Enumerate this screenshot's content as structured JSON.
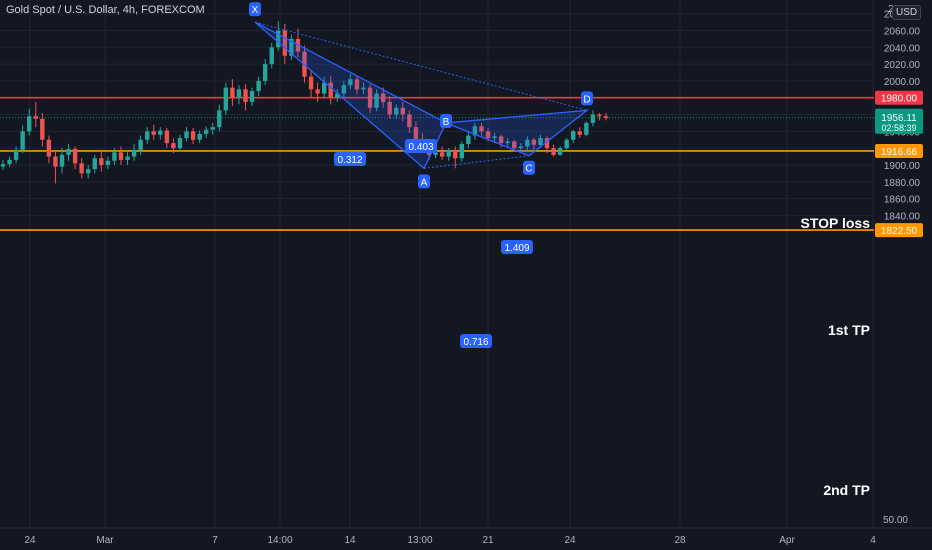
{
  "header": {
    "title": "Gold Spot / U.S. Dollar, 4h, FOREXCOM",
    "currency": "USD"
  },
  "colors": {
    "background": "#131722",
    "grid": "#1f2430",
    "bull": "#26a69a",
    "bear": "#ef5350",
    "pattern": "#2962ff",
    "stop": "#f23645",
    "target": "#ff9800",
    "last_price": "#089981",
    "axis_text": "#b2b5be"
  },
  "chart_data": {
    "type": "candlestick",
    "y_axis": {
      "ylim": [
        1810,
        2096
      ],
      "ticks": [
        1840,
        1860,
        1880,
        1900,
        1920,
        1940,
        1960,
        1980,
        2000,
        2020,
        2040,
        2060,
        2080
      ],
      "tick_labels": [
        "1840.00",
        "1860.00",
        "1880.00",
        "1900.00",
        "1920.00",
        "1940.00",
        "1960.00",
        "1980.00",
        "2000.00",
        "2020.00",
        "2040.00",
        "2060.00",
        "2080.00"
      ],
      "top_partial_label": "21",
      "bottom_label": "50.00"
    },
    "x_axis": {
      "labels": [
        "24",
        "Mar",
        "7",
        "14:00",
        "14",
        "13:00",
        "21",
        "24",
        "28",
        "Apr",
        "4"
      ]
    },
    "levels": [
      {
        "name": "STOP loss",
        "price": 1980.0,
        "label": "1980.00",
        "color": "#f23645"
      },
      {
        "name": "1st TP",
        "price": 1916.66,
        "label": "1916.66",
        "color": "#ff9800"
      },
      {
        "name": "2nd TP",
        "price": 1822.5,
        "label": "1822.50",
        "color": "#ff9800"
      }
    ],
    "last_price": {
      "price": 1956.11,
      "label": "1956.11",
      "countdown": "02:58:39"
    },
    "pattern": {
      "points": [
        {
          "name": "X",
          "price": 2070
        },
        {
          "name": "A",
          "price": 1896
        },
        {
          "name": "B",
          "price": 1950
        },
        {
          "name": "C",
          "price": 1911
        },
        {
          "name": "D",
          "price": 1965
        }
      ],
      "ratios": [
        {
          "label": "0.312"
        },
        {
          "label": "0.403"
        },
        {
          "label": "1.409"
        },
        {
          "label": "0.716"
        }
      ]
    },
    "candles": [
      {
        "o": 1898,
        "h": 1906,
        "c": 1901,
        "l": 1894
      },
      {
        "o": 1901,
        "h": 1910,
        "c": 1906,
        "l": 1898
      },
      {
        "o": 1906,
        "h": 1922,
        "c": 1918,
        "l": 1902
      },
      {
        "o": 1918,
        "h": 1947,
        "c": 1940,
        "l": 1914
      },
      {
        "o": 1940,
        "h": 1967,
        "c": 1958,
        "l": 1935
      },
      {
        "o": 1958,
        "h": 1975,
        "c": 1955,
        "l": 1945
      },
      {
        "o": 1955,
        "h": 1962,
        "c": 1930,
        "l": 1922
      },
      {
        "o": 1930,
        "h": 1935,
        "c": 1910,
        "l": 1902
      },
      {
        "o": 1910,
        "h": 1918,
        "c": 1898,
        "l": 1878
      },
      {
        "o": 1898,
        "h": 1920,
        "c": 1912,
        "l": 1890
      },
      {
        "o": 1912,
        "h": 1925,
        "c": 1919,
        "l": 1905
      },
      {
        "o": 1919,
        "h": 1922,
        "c": 1902,
        "l": 1895
      },
      {
        "o": 1902,
        "h": 1908,
        "c": 1890,
        "l": 1884
      },
      {
        "o": 1890,
        "h": 1900,
        "c": 1895,
        "l": 1884
      },
      {
        "o": 1895,
        "h": 1912,
        "c": 1908,
        "l": 1890
      },
      {
        "o": 1908,
        "h": 1918,
        "c": 1900,
        "l": 1892
      },
      {
        "o": 1900,
        "h": 1910,
        "c": 1905,
        "l": 1895
      },
      {
        "o": 1905,
        "h": 1920,
        "c": 1915,
        "l": 1900
      },
      {
        "o": 1915,
        "h": 1922,
        "c": 1906,
        "l": 1900
      },
      {
        "o": 1906,
        "h": 1915,
        "c": 1910,
        "l": 1900
      },
      {
        "o": 1910,
        "h": 1925,
        "c": 1918,
        "l": 1905
      },
      {
        "o": 1918,
        "h": 1935,
        "c": 1930,
        "l": 1912
      },
      {
        "o": 1930,
        "h": 1945,
        "c": 1940,
        "l": 1925
      },
      {
        "o": 1940,
        "h": 1948,
        "c": 1936,
        "l": 1930
      },
      {
        "o": 1936,
        "h": 1945,
        "c": 1941,
        "l": 1930
      },
      {
        "o": 1941,
        "h": 1944,
        "c": 1926,
        "l": 1920
      },
      {
        "o": 1926,
        "h": 1932,
        "c": 1920,
        "l": 1914
      },
      {
        "o": 1920,
        "h": 1936,
        "c": 1932,
        "l": 1916
      },
      {
        "o": 1932,
        "h": 1945,
        "c": 1940,
        "l": 1928
      },
      {
        "o": 1940,
        "h": 1944,
        "c": 1930,
        "l": 1925
      },
      {
        "o": 1930,
        "h": 1941,
        "c": 1937,
        "l": 1926
      },
      {
        "o": 1937,
        "h": 1946,
        "c": 1942,
        "l": 1932
      },
      {
        "o": 1942,
        "h": 1950,
        "c": 1945,
        "l": 1936
      },
      {
        "o": 1945,
        "h": 1972,
        "c": 1965,
        "l": 1940
      },
      {
        "o": 1965,
        "h": 1998,
        "c": 1992,
        "l": 1960
      },
      {
        "o": 1992,
        "h": 2002,
        "c": 1980,
        "l": 1970
      },
      {
        "o": 1980,
        "h": 1995,
        "c": 1990,
        "l": 1972
      },
      {
        "o": 1990,
        "h": 1996,
        "c": 1975,
        "l": 1965
      },
      {
        "o": 1975,
        "h": 1992,
        "c": 1988,
        "l": 1970
      },
      {
        "o": 1988,
        "h": 2005,
        "c": 2000,
        "l": 1982
      },
      {
        "o": 2000,
        "h": 2026,
        "c": 2020,
        "l": 1995
      },
      {
        "o": 2020,
        "h": 2045,
        "c": 2040,
        "l": 2015
      },
      {
        "o": 2040,
        "h": 2071,
        "c": 2060,
        "l": 2036
      },
      {
        "o": 2060,
        "h": 2068,
        "c": 2030,
        "l": 2020
      },
      {
        "o": 2030,
        "h": 2055,
        "c": 2050,
        "l": 2025
      },
      {
        "o": 2050,
        "h": 2062,
        "c": 2035,
        "l": 2028
      },
      {
        "o": 2035,
        "h": 2042,
        "c": 2005,
        "l": 1998
      },
      {
        "o": 2005,
        "h": 2012,
        "c": 1990,
        "l": 1980
      },
      {
        "o": 1990,
        "h": 1998,
        "c": 1985,
        "l": 1975
      },
      {
        "o": 1985,
        "h": 2005,
        "c": 1998,
        "l": 1980
      },
      {
        "o": 1998,
        "h": 2006,
        "c": 1980,
        "l": 1972
      },
      {
        "o": 1980,
        "h": 1990,
        "c": 1985,
        "l": 1975
      },
      {
        "o": 1985,
        "h": 2000,
        "c": 1995,
        "l": 1980
      },
      {
        "o": 1995,
        "h": 2008,
        "c": 2002,
        "l": 1990
      },
      {
        "o": 2002,
        "h": 2006,
        "c": 1990,
        "l": 1984
      },
      {
        "o": 1990,
        "h": 1998,
        "c": 1992,
        "l": 1984
      },
      {
        "o": 1992,
        "h": 1996,
        "c": 1968,
        "l": 1962
      },
      {
        "o": 1968,
        "h": 1990,
        "c": 1985,
        "l": 1964
      },
      {
        "o": 1985,
        "h": 1992,
        "c": 1975,
        "l": 1968
      },
      {
        "o": 1975,
        "h": 1982,
        "c": 1960,
        "l": 1955
      },
      {
        "o": 1960,
        "h": 1972,
        "c": 1968,
        "l": 1955
      },
      {
        "o": 1968,
        "h": 1975,
        "c": 1960,
        "l": 1952
      },
      {
        "o": 1960,
        "h": 1965,
        "c": 1945,
        "l": 1938
      },
      {
        "o": 1945,
        "h": 1952,
        "c": 1930,
        "l": 1925
      },
      {
        "o": 1930,
        "h": 1938,
        "c": 1920,
        "l": 1914
      },
      {
        "o": 1920,
        "h": 1925,
        "c": 1912,
        "l": 1906
      },
      {
        "o": 1912,
        "h": 1920,
        "c": 1915,
        "l": 1908
      },
      {
        "o": 1915,
        "h": 1922,
        "c": 1910,
        "l": 1906
      },
      {
        "o": 1910,
        "h": 1920,
        "c": 1918,
        "l": 1905
      },
      {
        "o": 1918,
        "h": 1922,
        "c": 1908,
        "l": 1896
      },
      {
        "o": 1908,
        "h": 1928,
        "c": 1925,
        "l": 1904
      },
      {
        "o": 1925,
        "h": 1940,
        "c": 1935,
        "l": 1920
      },
      {
        "o": 1935,
        "h": 1950,
        "c": 1946,
        "l": 1930
      },
      {
        "o": 1946,
        "h": 1950,
        "c": 1940,
        "l": 1935
      },
      {
        "o": 1940,
        "h": 1944,
        "c": 1932,
        "l": 1928
      },
      {
        "o": 1932,
        "h": 1938,
        "c": 1934,
        "l": 1926
      },
      {
        "o": 1934,
        "h": 1936,
        "c": 1926,
        "l": 1921
      },
      {
        "o": 1926,
        "h": 1932,
        "c": 1928,
        "l": 1920
      },
      {
        "o": 1928,
        "h": 1930,
        "c": 1920,
        "l": 1916
      },
      {
        "o": 1920,
        "h": 1926,
        "c": 1922,
        "l": 1915
      },
      {
        "o": 1922,
        "h": 1934,
        "c": 1930,
        "l": 1918
      },
      {
        "o": 1930,
        "h": 1932,
        "c": 1924,
        "l": 1918
      },
      {
        "o": 1924,
        "h": 1936,
        "c": 1932,
        "l": 1920
      },
      {
        "o": 1932,
        "h": 1934,
        "c": 1920,
        "l": 1914
      },
      {
        "o": 1920,
        "h": 1924,
        "c": 1912,
        "l": 1910
      },
      {
        "o": 1912,
        "h": 1922,
        "c": 1920,
        "l": 1911
      },
      {
        "o": 1920,
        "h": 1932,
        "c": 1930,
        "l": 1918
      },
      {
        "o": 1930,
        "h": 1942,
        "c": 1940,
        "l": 1926
      },
      {
        "o": 1940,
        "h": 1945,
        "c": 1936,
        "l": 1932
      },
      {
        "o": 1936,
        "h": 1952,
        "c": 1950,
        "l": 1934
      },
      {
        "o": 1950,
        "h": 1965,
        "c": 1960,
        "l": 1946
      },
      {
        "o": 1960,
        "h": 1962,
        "c": 1958,
        "l": 1953
      },
      {
        "o": 1958,
        "h": 1962,
        "c": 1956,
        "l": 1953
      }
    ]
  },
  "annotations": {
    "stop": "STOP loss",
    "tp1": "1st TP",
    "tp2": "2nd TP"
  }
}
